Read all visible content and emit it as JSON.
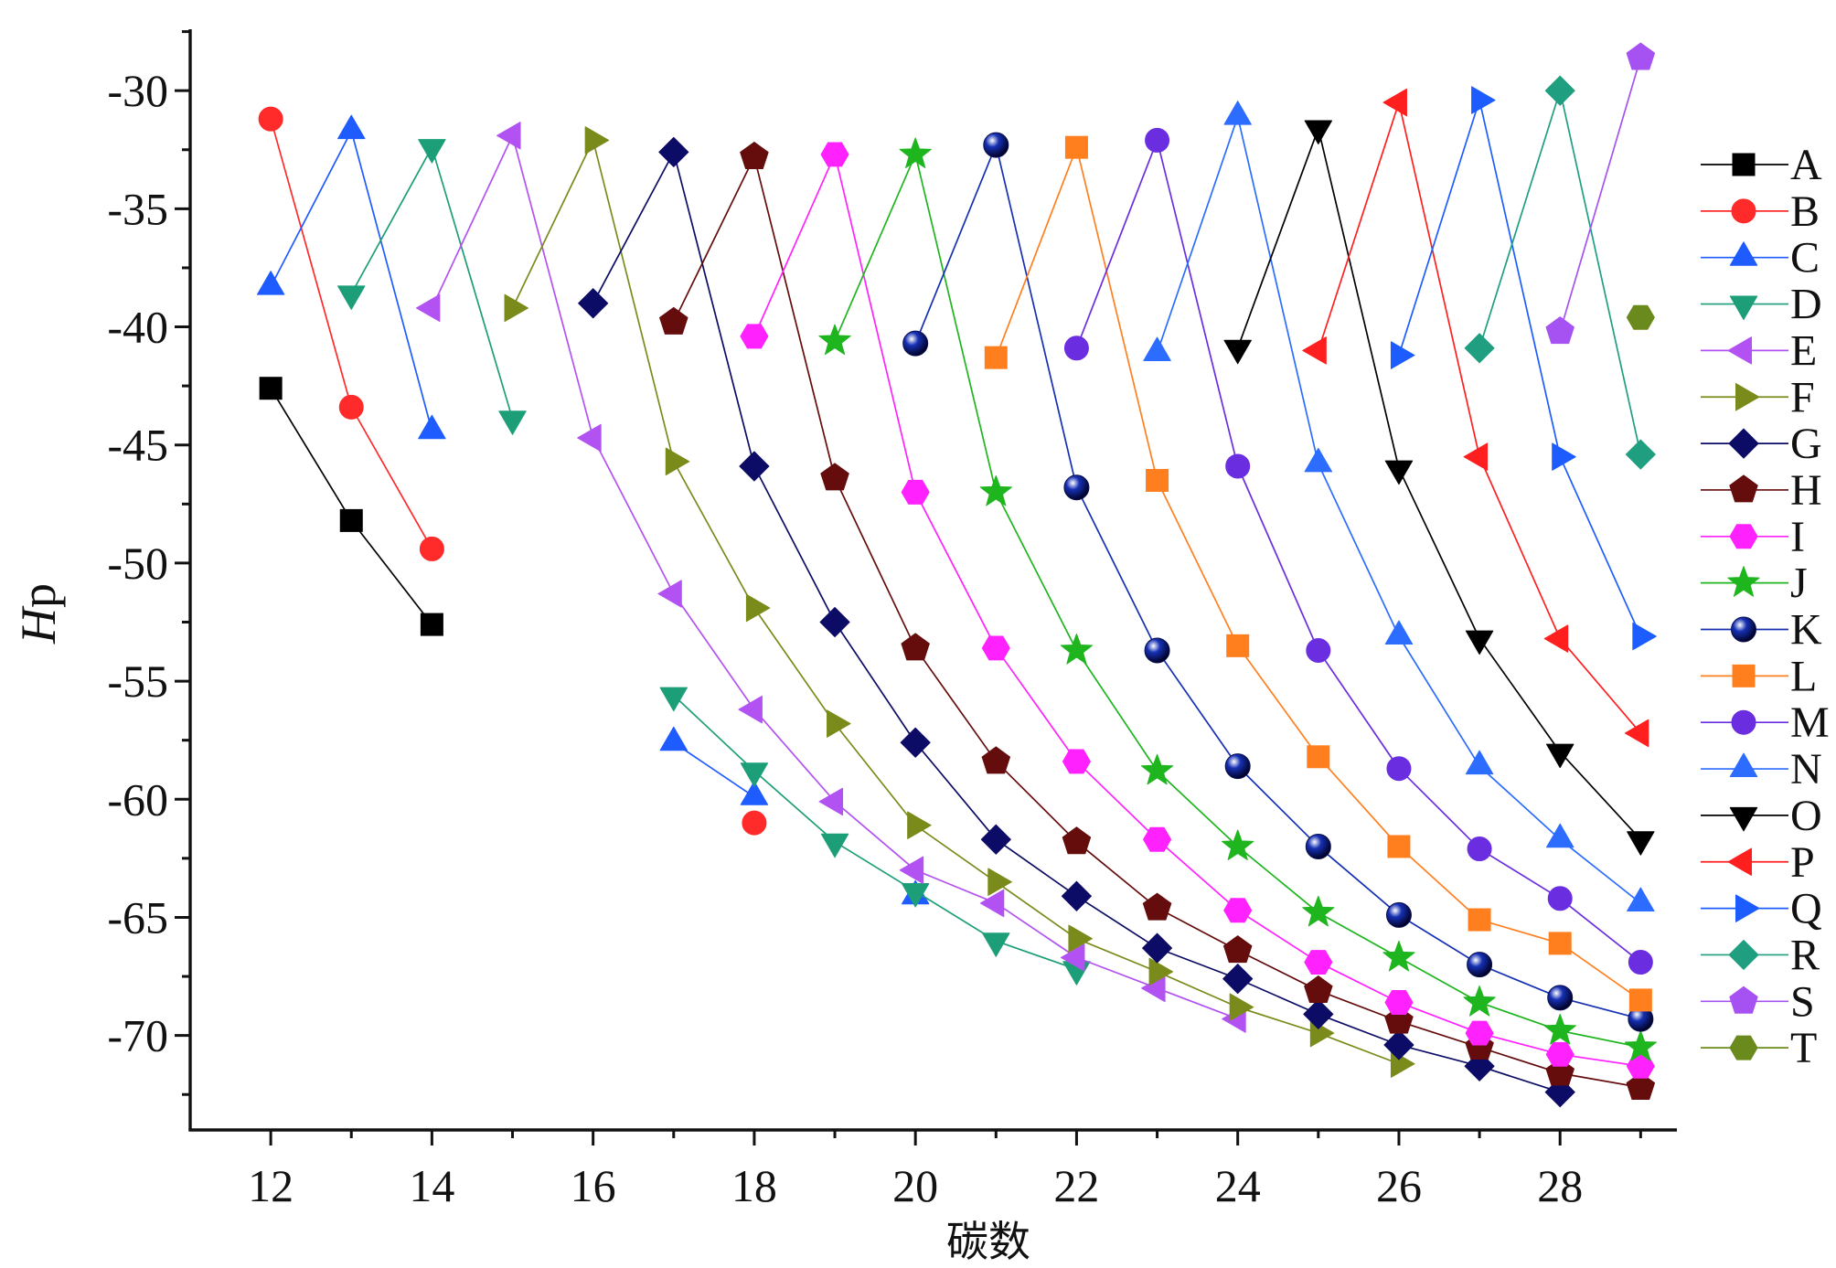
{
  "chart_data": {
    "type": "line",
    "title": "",
    "xlabel": "碳数",
    "ylabel": "Hp",
    "xlim": [
      11,
      29.45
    ],
    "ylim": [
      -74,
      -27.4
    ],
    "xticks": [
      12,
      14,
      16,
      18,
      20,
      22,
      24,
      26,
      28
    ],
    "yticks": [
      -30,
      -35,
      -40,
      -45,
      -50,
      -55,
      -60,
      -65,
      -70
    ],
    "grid": false,
    "legend_position": "right",
    "series": [
      {
        "name": "A",
        "color": "#000000",
        "marker": "square",
        "x": [
          12,
          13,
          14
        ],
        "y": [
          -42.6,
          -48.2,
          -52.6
        ]
      },
      {
        "name": "B",
        "color": "#ff2a2a",
        "marker": "circle",
        "x": [
          12,
          13,
          14,
          15,
          16,
          17,
          18
        ],
        "y": [
          -31.2,
          -43.4,
          -49.4,
          null,
          null,
          null,
          -61.0
        ]
      },
      {
        "name": "C",
        "color": "#1f5cff",
        "marker": "triangle-up",
        "x": [
          12,
          13,
          14,
          15,
          16,
          17,
          18,
          19,
          20
        ],
        "y": [
          -38.3,
          -31.7,
          -44.4,
          null,
          null,
          -57.6,
          -59.9,
          null,
          -64.1
        ]
      },
      {
        "name": "D",
        "color": "#1c9e78",
        "marker": "triangle-down",
        "x": [
          13,
          14,
          15,
          16,
          17,
          18,
          19,
          20,
          21,
          22
        ],
        "y": [
          -38.6,
          -32.4,
          -43.9,
          null,
          -55.6,
          -58.8,
          -61.8,
          -63.9,
          -66.0,
          -67.2
        ]
      },
      {
        "name": "E",
        "color": "#b352f2",
        "marker": "triangle-left",
        "x": [
          14,
          15,
          16,
          17,
          18,
          19,
          20,
          21,
          22,
          23,
          24
        ],
        "y": [
          -39.2,
          -31.9,
          -44.7,
          -51.3,
          -56.2,
          -60.1,
          -63.0,
          -64.4,
          -66.7,
          -68.0,
          -69.3
        ]
      },
      {
        "name": "F",
        "color": "#7b8b1b",
        "marker": "triangle-right",
        "x": [
          15,
          16,
          17,
          18,
          19,
          20,
          21,
          22,
          23,
          24,
          25,
          26
        ],
        "y": [
          -39.2,
          -32.1,
          -45.7,
          -51.9,
          -56.8,
          -61.1,
          -63.5,
          -65.9,
          -67.3,
          -68.8,
          -69.9,
          -71.2
        ]
      },
      {
        "name": "G",
        "color": "#0c0c66",
        "marker": "diamond",
        "x": [
          16,
          17,
          18,
          19,
          20,
          21,
          22,
          23,
          24,
          25,
          26,
          27,
          28
        ],
        "y": [
          -39.0,
          -32.6,
          -45.9,
          -52.5,
          -57.6,
          -61.7,
          -64.1,
          -66.3,
          -67.6,
          -69.1,
          -70.4,
          -71.3,
          -72.4
        ]
      },
      {
        "name": "H",
        "color": "#650d0d",
        "marker": "pentagon",
        "x": [
          17,
          18,
          19,
          20,
          21,
          22,
          23,
          24,
          25,
          26,
          27,
          28,
          29
        ],
        "y": [
          -39.8,
          -32.8,
          -46.4,
          -53.6,
          -58.4,
          -61.8,
          -64.6,
          -66.4,
          -68.1,
          -69.4,
          -70.5,
          -71.6,
          -72.2
        ]
      },
      {
        "name": "I",
        "color": "#ff22ff",
        "marker": "hexagon",
        "x": [
          18,
          19,
          20,
          21,
          22,
          23,
          24,
          25,
          26,
          27,
          28,
          29
        ],
        "y": [
          -40.4,
          -32.7,
          -47.0,
          -53.6,
          -58.4,
          -61.7,
          -64.7,
          -66.9,
          -68.6,
          -69.9,
          -70.8,
          -71.3
        ]
      },
      {
        "name": "J",
        "color": "#1fb51f",
        "marker": "star",
        "x": [
          19,
          20,
          21,
          22,
          23,
          24,
          25,
          26,
          27,
          28,
          29
        ],
        "y": [
          -40.6,
          -32.7,
          -47.0,
          -53.7,
          -58.8,
          -62.0,
          -64.8,
          -66.7,
          -68.6,
          -69.8,
          -70.5
        ]
      },
      {
        "name": "K",
        "color": "#1630b4",
        "marker": "sphere",
        "x": [
          20,
          21,
          22,
          23,
          24,
          25,
          26,
          27,
          28,
          29
        ],
        "y": [
          -40.7,
          -32.3,
          -46.8,
          -53.7,
          -58.6,
          -62.0,
          -64.9,
          -67.0,
          -68.4,
          -69.3
        ]
      },
      {
        "name": "L",
        "color": "#ff7f1f",
        "marker": "square",
        "x": [
          21,
          22,
          23,
          24,
          25,
          26,
          27,
          28,
          29
        ],
        "y": [
          -41.3,
          -32.4,
          -46.5,
          -53.5,
          -58.2,
          -62.0,
          -65.1,
          -66.1,
          -68.5
        ]
      },
      {
        "name": "M",
        "color": "#6a2ee0",
        "marker": "circle",
        "x": [
          22,
          23,
          24,
          25,
          26,
          27,
          28,
          29
        ],
        "y": [
          -40.9,
          -32.1,
          -45.9,
          -53.7,
          -58.7,
          -62.1,
          -64.2,
          -66.9
        ]
      },
      {
        "name": "N",
        "color": "#2c6cff",
        "marker": "triangle-up",
        "x": [
          23,
          24,
          25,
          26,
          27,
          28,
          29
        ],
        "y": [
          -41.1,
          -31.1,
          -45.8,
          -53.1,
          -58.6,
          -61.7,
          -64.4
        ]
      },
      {
        "name": "O",
        "color": "#000000",
        "marker": "triangle-down",
        "x": [
          24,
          25,
          26,
          27,
          28,
          29
        ],
        "y": [
          -40.9,
          -31.6,
          -46.0,
          -53.2,
          -58.0,
          -61.7
        ]
      },
      {
        "name": "P",
        "color": "#ff1f1f",
        "marker": "triangle-left",
        "x": [
          25,
          26,
          27,
          28,
          29
        ],
        "y": [
          -41.0,
          -30.5,
          -45.5,
          -53.2,
          -57.2
        ]
      },
      {
        "name": "Q",
        "color": "#1d5cff",
        "marker": "triangle-right",
        "x": [
          26,
          27,
          28,
          29
        ],
        "y": [
          -41.2,
          -30.4,
          -45.5,
          -53.1
        ]
      },
      {
        "name": "R",
        "color": "#1f9f7f",
        "marker": "diamond",
        "x": [
          27,
          28,
          29
        ],
        "y": [
          -40.9,
          -30.0,
          -45.4
        ]
      },
      {
        "name": "S",
        "color": "#a652f2",
        "marker": "pentagon",
        "x": [
          28,
          29
        ],
        "y": [
          -40.2,
          -28.6
        ]
      },
      {
        "name": "T",
        "color": "#6b8a1d",
        "marker": "hexagon",
        "x": [
          29
        ],
        "y": [
          -39.6
        ]
      }
    ]
  }
}
